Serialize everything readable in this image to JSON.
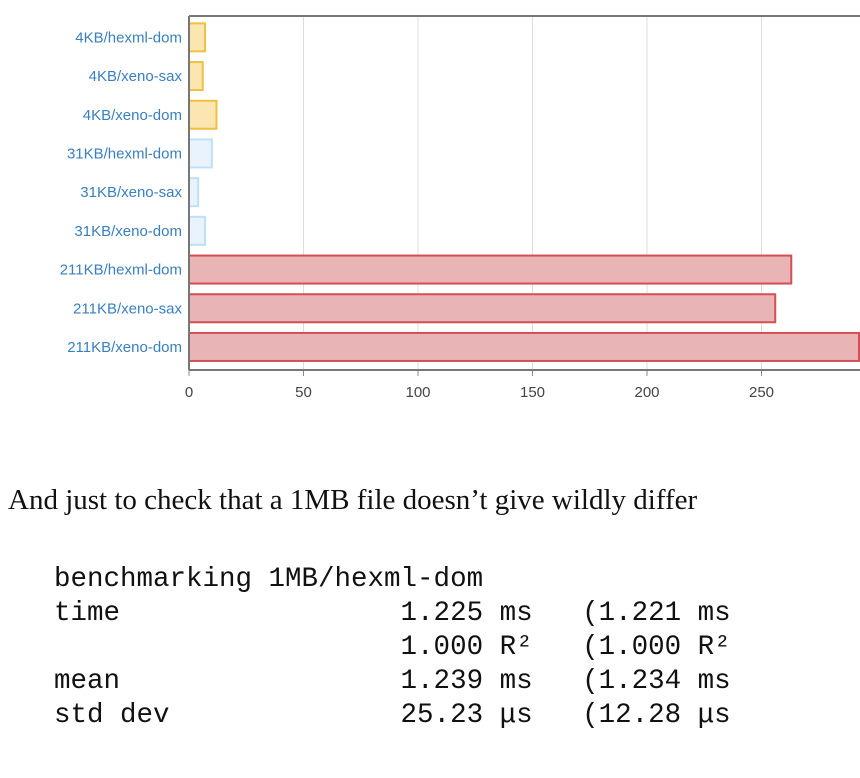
{
  "chart_data": {
    "type": "bar",
    "orientation": "horizontal",
    "categories": [
      "4KB/hexml-dom",
      "4KB/xeno-sax",
      "4KB/xeno-dom",
      "31KB/hexml-dom",
      "31KB/xeno-sax",
      "31KB/xeno-dom",
      "211KB/hexml-dom",
      "211KB/xeno-sax",
      "211KB/xeno-dom"
    ],
    "values": [
      7,
      6,
      12,
      10,
      4,
      7,
      263,
      256,
      300
    ],
    "groups": [
      "4KB",
      "4KB",
      "4KB",
      "31KB",
      "31KB",
      "31KB",
      "211KB",
      "211KB",
      "211KB"
    ],
    "colors": {
      "4KB": {
        "fill": "#fbe5b0",
        "stroke": "#f0c040"
      },
      "31KB": {
        "fill": "#e8f3fd",
        "stroke": "#bfe0fa"
      },
      "211KB": {
        "fill": "#e8b4b6",
        "stroke": "#d24f55"
      }
    },
    "xticks": [
      0,
      50,
      100,
      150,
      200,
      250
    ],
    "xlim": [
      0,
      300
    ],
    "grid": true,
    "title": "",
    "xlabel": "",
    "ylabel": ""
  },
  "prose": "And just to check that a 1MB file doesn’t give wildly differ",
  "code_lines": [
    "benchmarking 1MB/hexml-dom",
    "time                 1.225 ms   (1.221 ms",
    "                     1.000 R²   (1.000 R²",
    "mean                 1.239 ms   (1.234 ms",
    "std dev              25.23 μs   (12.28 μs"
  ]
}
